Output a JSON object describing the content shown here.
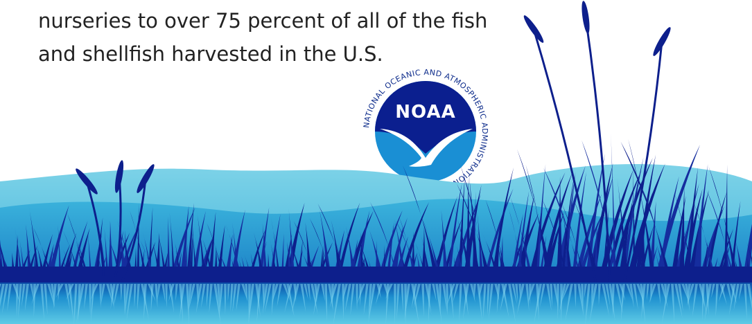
{
  "text": {
    "lines": [
      "nurseries to over 75 percent of all of the fish",
      "and shellfish harvested in the U.S."
    ]
  },
  "logo": {
    "name": "NOAA",
    "ring": "NATIONAL OCEANIC AND ATMOSPHERIC ADMINISTRATION"
  }
}
